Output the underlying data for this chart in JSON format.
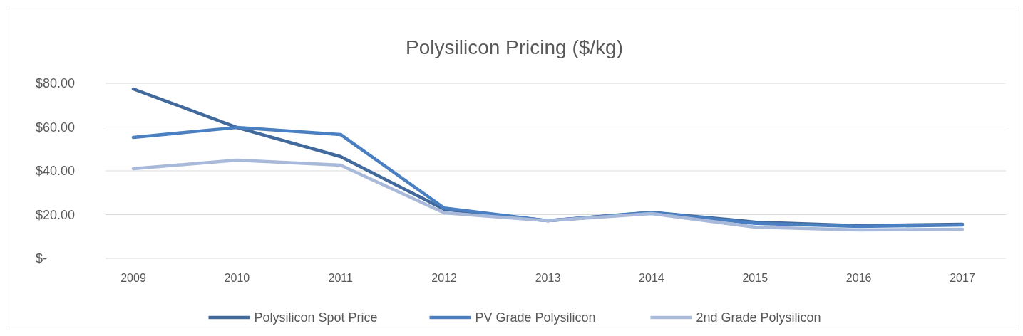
{
  "chart_data": {
    "type": "line",
    "title": "Polysilicon Pricing ($/kg)",
    "categories": [
      "2009",
      "2010",
      "2011",
      "2012",
      "2013",
      "2014",
      "2015",
      "2016",
      "2017"
    ],
    "series": [
      {
        "name": "Polysilicon Spot Price",
        "color": "#41699c",
        "values": [
          77.4,
          59.8,
          46.5,
          22.4,
          17.2,
          21.1,
          16.6,
          15,
          15.6
        ]
      },
      {
        "name": "PV Grade Polysilicon",
        "color": "#4a80c2",
        "values": [
          55.3,
          59.8,
          56.6,
          23,
          17.2,
          21,
          16,
          14.6,
          15.3
        ]
      },
      {
        "name": "2nd Grade Polysilicon",
        "color": "#a8b9da",
        "values": [
          41,
          44.9,
          42.6,
          20.8,
          17.2,
          20.5,
          14.3,
          13,
          13.3
        ]
      }
    ],
    "ylim": [
      0,
      80
    ],
    "yticks": [
      {
        "value": 0,
        "label": "$-"
      },
      {
        "value": 20,
        "label": "$20.00"
      },
      {
        "value": 40,
        "label": "$40.00"
      },
      {
        "value": 60,
        "label": "$60.00"
      },
      {
        "value": 80,
        "label": "$80.00"
      }
    ],
    "grid": "y",
    "legend": "bottom",
    "marker": "none",
    "line_style": "solid"
  }
}
